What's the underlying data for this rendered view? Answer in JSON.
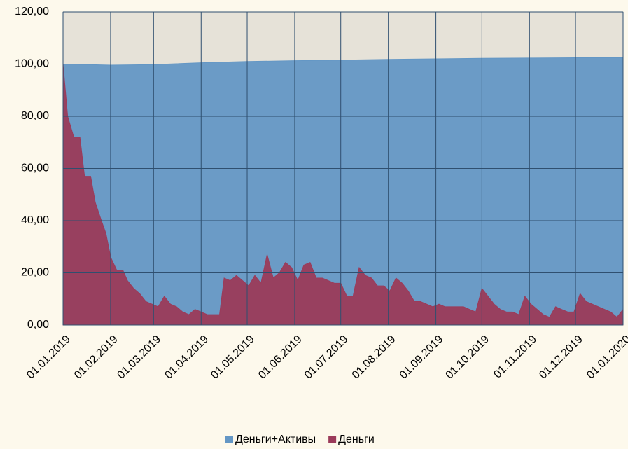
{
  "chart_data": {
    "type": "area",
    "xlim": [
      "01.01.2019",
      "01.01.2020"
    ],
    "xticks": [
      "01.01.2019",
      "01.02.2019",
      "01.03.2019",
      "01.04.2019",
      "01.05.2019",
      "01.06.2019",
      "01.07.2019",
      "01.08.2019",
      "01.09.2019",
      "01.10.2019",
      "01.11.2019",
      "01.12.2019",
      "01.01.2020"
    ],
    "ylim": [
      0,
      120
    ],
    "yticks": [
      {
        "value": 0,
        "label": "0,00"
      },
      {
        "value": 20,
        "label": "20,00"
      },
      {
        "value": 40,
        "label": "40,00"
      },
      {
        "value": 60,
        "label": "60,00"
      },
      {
        "value": 80,
        "label": "80,00"
      },
      {
        "value": 100,
        "label": "100,00"
      },
      {
        "value": 120,
        "label": "120,00"
      }
    ],
    "grid": true,
    "legend": "bottom",
    "series": [
      {
        "name": "Деньги+Активы",
        "color": "#6497c5",
        "x": [
          "01.01.2019",
          "01.02.2019",
          "01.03.2019",
          "01.04.2019",
          "01.05.2019",
          "01.06.2019",
          "01.07.2019",
          "01.08.2019",
          "01.09.2019",
          "01.10.2019",
          "01.11.2019",
          "01.12.2019",
          "01.01.2020"
        ],
        "values": [
          100,
          99.6,
          99.8,
          100.5,
          101,
          101.3,
          101.5,
          101.8,
          102,
          102.2,
          102.3,
          102.4,
          102.5
        ]
      },
      {
        "name": "Деньги",
        "color": "#9b3b5a",
        "x": [
          "01.01.2019",
          "04.01.2019",
          "08.01.2019",
          "12.01.2019",
          "15.01.2019",
          "19.01.2019",
          "22.01.2019",
          "26.01.2019",
          "29.01.2019",
          "01.02.2019",
          "05.02.2019",
          "09.02.2019",
          "12.02.2019",
          "16.02.2019",
          "20.02.2019",
          "24.02.2019",
          "28.02.2019",
          "04.03.2019",
          "08.03.2019",
          "12.03.2019",
          "16.03.2019",
          "20.03.2019",
          "24.03.2019",
          "28.03.2019",
          "01.04.2019",
          "05.04.2019",
          "09.04.2019",
          "13.04.2019",
          "16.04.2019",
          "20.04.2019",
          "24.04.2019",
          "28.04.2019",
          "02.05.2019",
          "06.05.2019",
          "10.05.2019",
          "14.05.2019",
          "18.05.2019",
          "22.05.2019",
          "26.05.2019",
          "30.05.2019",
          "03.06.2019",
          "07.06.2019",
          "11.06.2019",
          "15.06.2019",
          "19.06.2019",
          "23.06.2019",
          "27.06.2019",
          "01.07.2019",
          "05.07.2019",
          "09.07.2019",
          "13.07.2019",
          "17.07.2019",
          "21.07.2019",
          "25.07.2019",
          "29.07.2019",
          "02.08.2019",
          "06.08.2019",
          "10.08.2019",
          "14.08.2019",
          "18.08.2019",
          "22.08.2019",
          "26.08.2019",
          "30.08.2019",
          "03.09.2019",
          "07.09.2019",
          "11.09.2019",
          "15.09.2019",
          "19.09.2019",
          "23.09.2019",
          "27.09.2019",
          "01.10.2019",
          "05.10.2019",
          "09.10.2019",
          "13.10.2019",
          "17.10.2019",
          "21.10.2019",
          "25.10.2019",
          "29.10.2019",
          "02.11.2019",
          "06.11.2019",
          "10.11.2019",
          "14.11.2019",
          "18.11.2019",
          "22.11.2019",
          "26.11.2019",
          "30.11.2019",
          "04.12.2019",
          "08.12.2019",
          "12.12.2019",
          "16.12.2019",
          "20.12.2019",
          "24.12.2019",
          "28.12.2019",
          "01.01.2020"
        ],
        "values": [
          100,
          80,
          72,
          72,
          57,
          57,
          47,
          40,
          35,
          26,
          21,
          21,
          17,
          14,
          12,
          9,
          8,
          7,
          11,
          8,
          7,
          5,
          4,
          6,
          5,
          4,
          4,
          4,
          18,
          17,
          19,
          17,
          15,
          19,
          16,
          27,
          18,
          20,
          24,
          22,
          17,
          23,
          24,
          18,
          18,
          17,
          16,
          16,
          11,
          11,
          22,
          19,
          18,
          15,
          15,
          13,
          18,
          16,
          13,
          9,
          9,
          8,
          7,
          8,
          7,
          7,
          7,
          7,
          6,
          5,
          14,
          11,
          8,
          6,
          5,
          5,
          4,
          11,
          8,
          6,
          4,
          3,
          7,
          6,
          5,
          5,
          12,
          9,
          8,
          7,
          6,
          5,
          3,
          6
        ]
      }
    ]
  }
}
